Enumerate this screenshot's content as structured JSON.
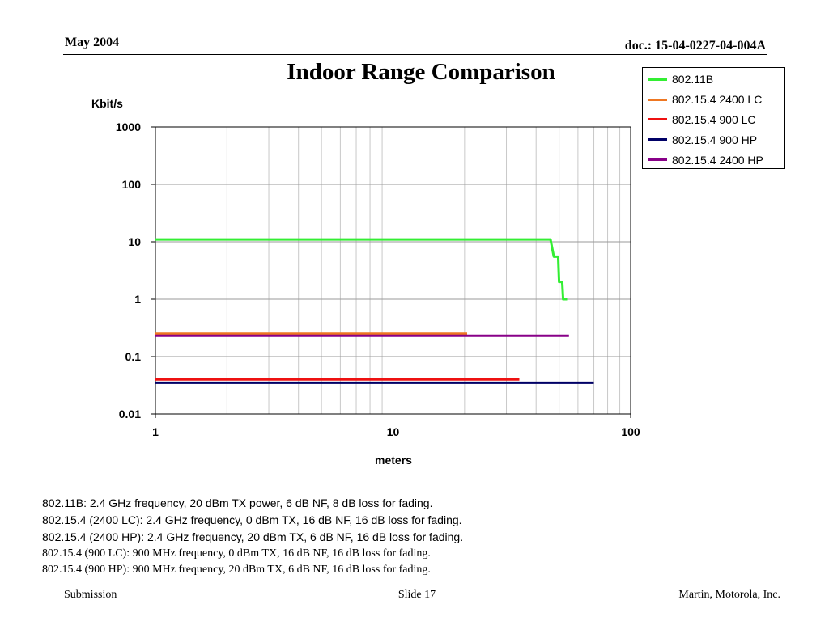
{
  "header": {
    "date": "May 2004",
    "doc": "doc.: 15-04-0227-04-004A"
  },
  "slide_title": "Indoor Range Comparison",
  "notes": [
    "802.11B:  2.4 GHz frequency, 20 dBm TX power, 6 dB NF, 8 dB loss for fading.",
    "802.15.4 (2400 LC):  2.4 GHz frequency, 0 dBm TX, 16 dB NF, 16 dB loss for fading.",
    "802.15.4 (2400 HP):  2.4 GHz frequency, 20 dBm TX, 6 dB NF, 16 dB loss for fading.",
    "802.15.4 (900 LC):  900 MHz frequency, 0 dBm TX, 16 dB NF, 16 dB loss for fading.",
    "802.15.4 (900 HP):  900 MHz frequency, 20 dBm TX, 6 dB NF, 16 dB loss for fading."
  ],
  "footer": {
    "left": "Submission",
    "center": "Slide 17",
    "right": "Martin, Motorola, Inc."
  },
  "chart_data": {
    "type": "line",
    "title": "",
    "xlabel": "meters",
    "ylabel": "Kbit/s",
    "x_scale": "log",
    "y_scale": "log",
    "xlim": [
      1,
      100
    ],
    "ylim": [
      0.01,
      1000
    ],
    "x_ticks": [
      "1",
      "10",
      "100"
    ],
    "y_ticks": [
      "1000",
      "100",
      "10",
      "1",
      "0.1",
      "0.01"
    ],
    "grid": true,
    "legend_position": "top-right, outside plot",
    "series": [
      {
        "name": "802.11B",
        "color": "#33ee33",
        "points": [
          [
            1,
            11
          ],
          [
            46,
            11
          ],
          [
            47.5,
            5.5
          ],
          [
            49.5,
            5.5
          ],
          [
            50,
            2
          ],
          [
            51.5,
            2
          ],
          [
            52,
            1
          ],
          [
            54,
            1
          ]
        ]
      },
      {
        "name": "802.15.4 2400 LC",
        "color": "#ee7722",
        "points": [
          [
            1,
            0.25
          ],
          [
            20.5,
            0.25
          ]
        ]
      },
      {
        "name": "802.15.4 900 LC",
        "color": "#ee1111",
        "points": [
          [
            1,
            0.04
          ],
          [
            34,
            0.04
          ]
        ]
      },
      {
        "name": "802.15.4 900 HP",
        "color": "#000066",
        "points": [
          [
            1,
            0.035
          ],
          [
            70,
            0.035
          ]
        ]
      },
      {
        "name": "802.15.4 2400 HP",
        "color": "#880088",
        "points": [
          [
            1,
            0.23
          ],
          [
            55,
            0.23
          ]
        ]
      }
    ]
  }
}
